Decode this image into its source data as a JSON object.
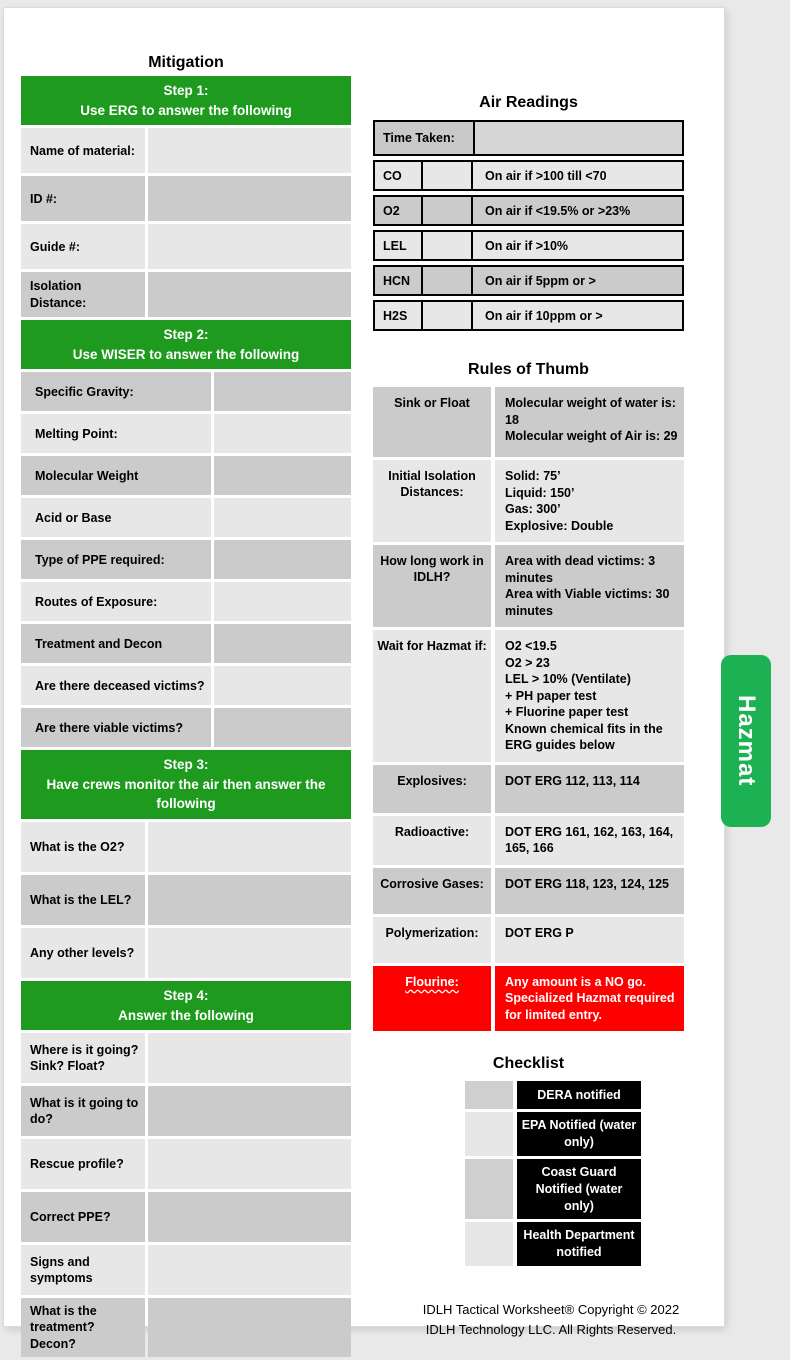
{
  "colors": {
    "green": "#1e9b1e",
    "tab_green": "#1cb254",
    "row_light": "#e7e7e7",
    "row_dark": "#cbcbcb",
    "alert_red": "#fe0000"
  },
  "mitigation": {
    "title": "Mitigation",
    "sections": [
      {
        "header": {
          "title": "Step 1:",
          "subtitle": "Use ERG to answer the following"
        },
        "rows": [
          {
            "label": "Name of material:"
          },
          {
            "label": "ID #:"
          },
          {
            "label": "Guide #:"
          },
          {
            "label": "Isolation Distance:"
          }
        ]
      },
      {
        "header": {
          "title": "Step 2:",
          "subtitle": "Use WISER to answer the following"
        },
        "rows": [
          {
            "label": "Specific Gravity:"
          },
          {
            "label": "Melting Point:"
          },
          {
            "label": "Molecular Weight"
          },
          {
            "label": "Acid or Base"
          },
          {
            "label": "Type of PPE required:"
          },
          {
            "label": "Routes of Exposure:"
          },
          {
            "label": "Treatment and Decon"
          },
          {
            "label": "Are there deceased victims?"
          },
          {
            "label": "Are there viable victims?"
          }
        ]
      },
      {
        "header": {
          "title": "Step 3:",
          "subtitle": "Have crews monitor the air then answer the following"
        },
        "rows": [
          {
            "label": "What is the O2?"
          },
          {
            "label": "What is the LEL?"
          },
          {
            "label": "Any other levels?"
          }
        ]
      },
      {
        "header": {
          "title": "Step 4:",
          "subtitle": "Answer the following"
        },
        "rows": [
          {
            "label": "Where is it going? Sink? Float?"
          },
          {
            "label": "What is it going to do?"
          },
          {
            "label": "Rescue profile?"
          },
          {
            "label": "Correct PPE?"
          },
          {
            "label": "Signs and symptoms"
          },
          {
            "label": "What is the treatment? Decon?"
          }
        ]
      }
    ]
  },
  "air_readings": {
    "title": "Air Readings",
    "time_label": "Time Taken:",
    "rows": [
      {
        "chem": "CO",
        "criterion": "On air if >100 till <70"
      },
      {
        "chem": "O2",
        "criterion": "On air if <19.5% or >23%"
      },
      {
        "chem": "LEL",
        "criterion": "On air if >10%"
      },
      {
        "chem": "HCN",
        "criterion": "On air if 5ppm or >"
      },
      {
        "chem": "H2S",
        "criterion": "On air if 10ppm or >"
      }
    ]
  },
  "rules_of_thumb": {
    "title": "Rules of Thumb",
    "rows": [
      {
        "label": "Sink or Float",
        "lines": [
          "Molecular weight of water is: 18",
          "Molecular weight of Air is:  29"
        ]
      },
      {
        "label": "Initial Isolation Distances:",
        "lines": [
          "Solid:  75’",
          "Liquid:  150’",
          "Gas:  300’",
          "Explosive:  Double"
        ]
      },
      {
        "label": "How long work in IDLH?",
        "lines": [
          "Area with dead victims: 3 minutes",
          "Area with Viable victims:  30 minutes"
        ]
      },
      {
        "label": "Wait for Hazmat if:",
        "lines": [
          "O2 <19.5",
          "O2 > 23",
          "LEL > 10% (Ventilate)",
          "+ PH paper test",
          "+ Fluorine paper test",
          "Known chemical fits in the ERG guides below"
        ]
      },
      {
        "label": "Explosives:",
        "lines": [
          "DOT ERG 112, 113, 114"
        ]
      },
      {
        "label": "Radioactive:",
        "lines": [
          "DOT ERG 161, 162, 163, 164, 165, 166"
        ]
      },
      {
        "label": "Corrosive Gases:",
        "lines": [
          "DOT ERG 118, 123, 124, 125"
        ]
      },
      {
        "label": "Polymerization:",
        "lines": [
          "DOT ERG P"
        ]
      },
      {
        "label": "Flourine:",
        "lines": [
          "Any amount is a NO go. Specialized Hazmat required for limited entry."
        ]
      }
    ]
  },
  "checklist": {
    "title": "Checklist",
    "items": [
      {
        "label": "DERA notified"
      },
      {
        "label": "EPA Notified (water only)"
      },
      {
        "label": "Coast Guard Notified (water only)"
      },
      {
        "label": "Health Department notified"
      }
    ]
  },
  "footer": {
    "line1": "IDLH Tactical Worksheet®  Copyright © 2022",
    "line2": "IDLH Technology LLC. All Rights Reserved."
  },
  "tab": {
    "label": "Hazmat"
  }
}
